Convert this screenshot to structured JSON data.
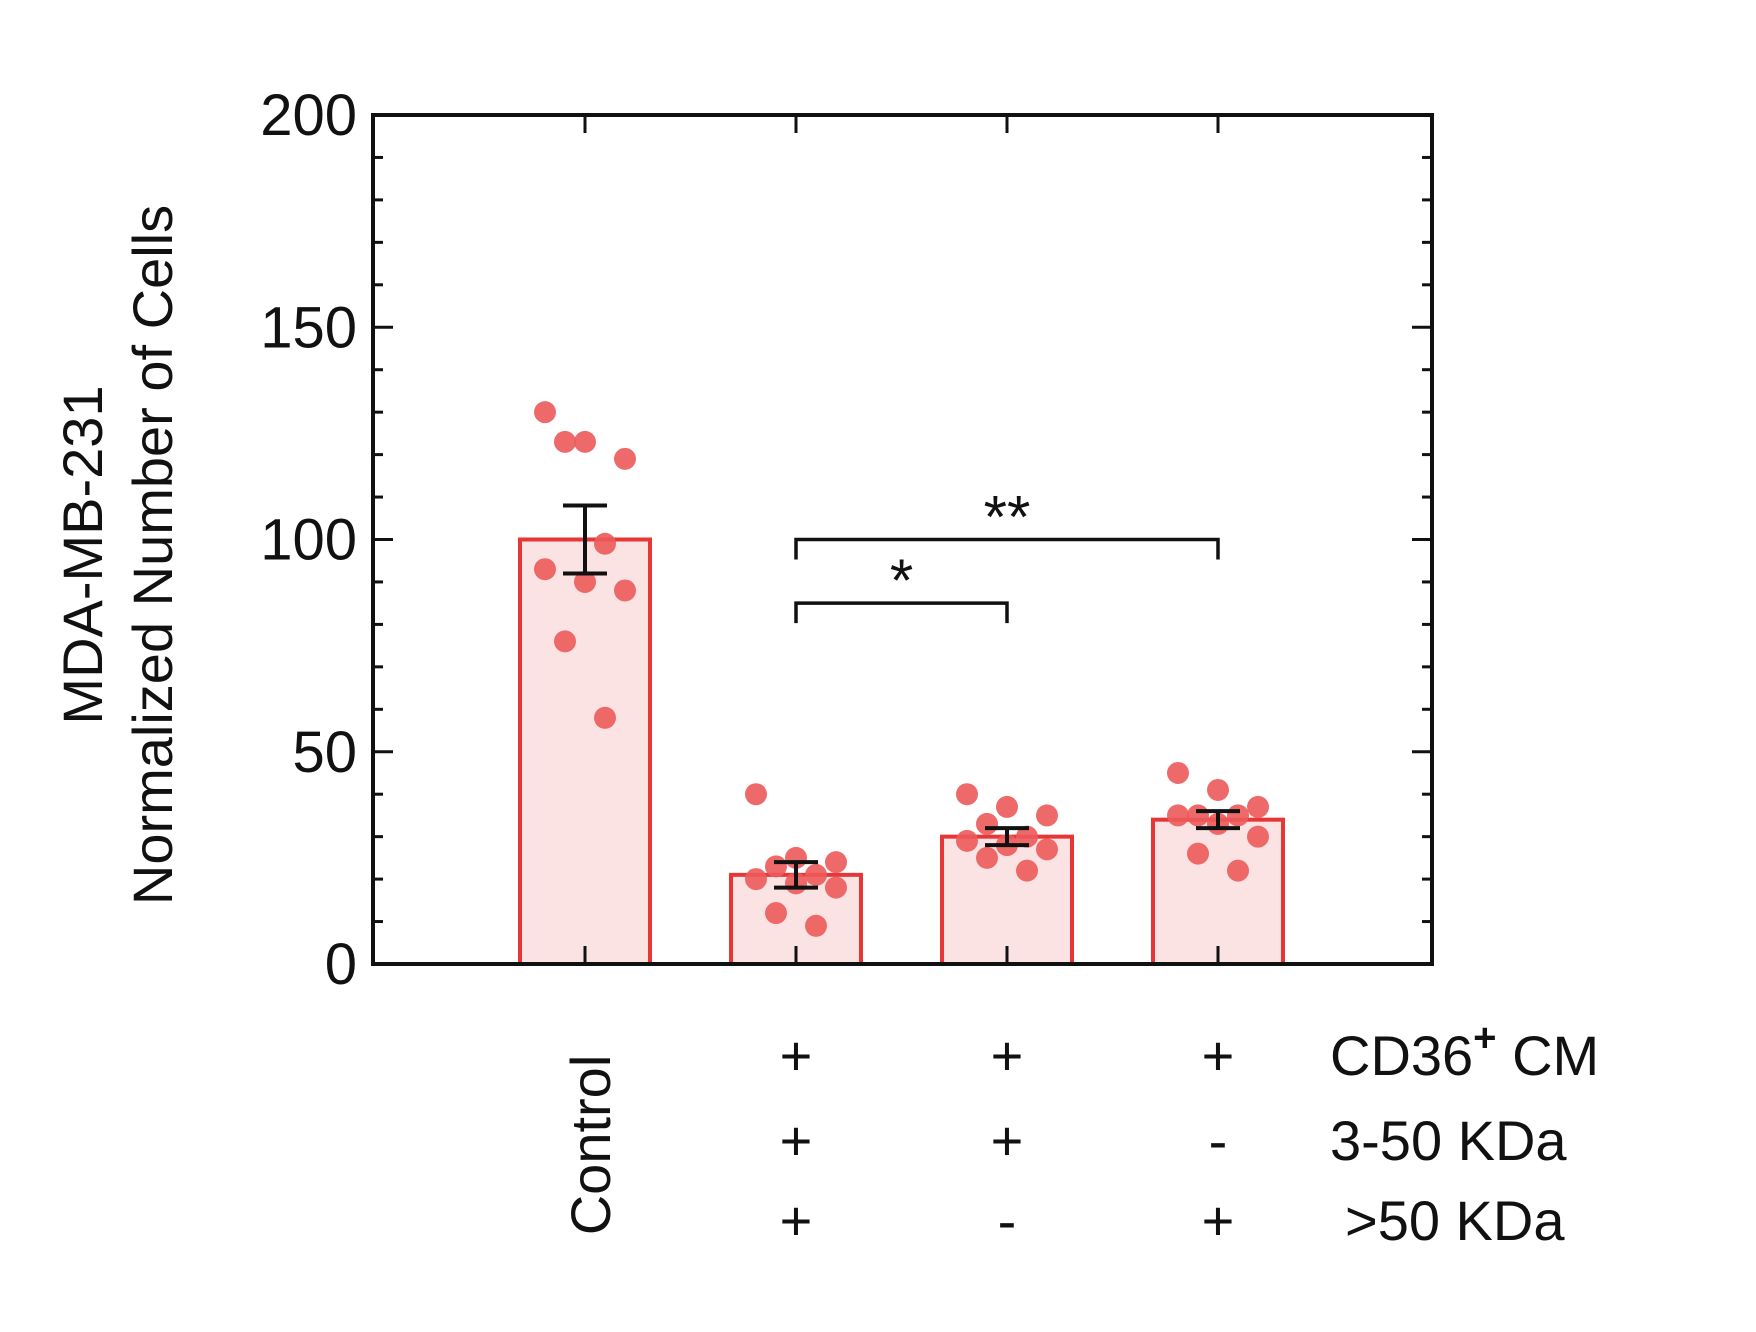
{
  "chart_data": {
    "type": "bar",
    "ylabel_lines": [
      "MDA-MB-231",
      "Normalized Number of Cells"
    ],
    "ylim": [
      0,
      200
    ],
    "yticks": [
      "0",
      "50",
      "100",
      "150",
      "200"
    ],
    "ytick_values": [
      0,
      50,
      100,
      150,
      200
    ],
    "categories": [
      "Control",
      "CD36+ CM 3-50 KDa + >50 KDa",
      "CD36+ CM 3-50 KDa only",
      "CD36+ CM >50 KDa only"
    ],
    "category_label": "Control",
    "values": [
      100,
      21,
      30,
      34
    ],
    "sem": [
      8,
      3,
      2,
      2
    ],
    "points": [
      [
        130,
        123,
        119,
        123,
        99,
        93,
        90,
        88,
        76,
        58
      ],
      [
        40,
        25,
        24,
        23,
        21,
        20,
        19,
        18,
        12,
        9
      ],
      [
        40,
        37,
        35,
        33,
        30,
        29,
        28,
        27,
        25,
        22
      ],
      [
        45,
        41,
        37,
        35,
        35,
        35,
        33,
        30,
        26,
        22
      ]
    ],
    "condition_rows": [
      {
        "label": "CD36",
        "superscript": "+",
        "suffix": " CM",
        "marks": [
          "",
          "+",
          "+",
          "+"
        ]
      },
      {
        "label": "3-50 KDa",
        "superscript": "",
        "suffix": "",
        "marks": [
          "",
          "+",
          "+",
          "-"
        ]
      },
      {
        "label": ">50 KDa",
        "superscript": "",
        "suffix": "",
        "marks": [
          "",
          "+",
          "-",
          "+"
        ]
      }
    ],
    "significance": [
      {
        "from": 1,
        "to": 3,
        "y": 100,
        "label": "**"
      },
      {
        "from": 1,
        "to": 2,
        "y": 85,
        "label": "*"
      }
    ],
    "colors": {
      "bar_fill": "#fce3e3",
      "bar_stroke": "#e63636",
      "point": "#ec5a5a",
      "axis": "#111111"
    }
  }
}
